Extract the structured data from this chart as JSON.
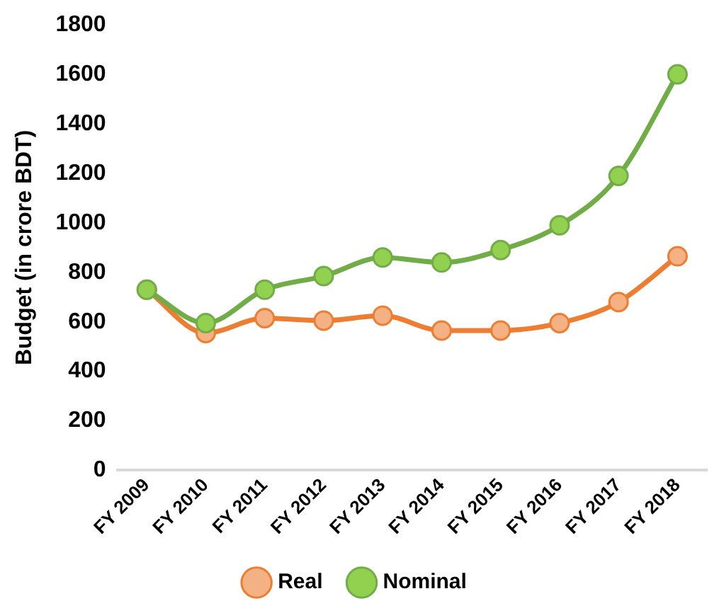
{
  "chart_data": {
    "type": "line",
    "ylabel": "Budget (in crore BDT)",
    "categories": [
      "FY 2009",
      "FY 2010",
      "FY 2011",
      "FY 2012",
      "FY 2013",
      "FY 2014",
      "FY 2015",
      "FY 2016",
      "FY 2017",
      "FY 2018"
    ],
    "series": [
      {
        "name": "Real",
        "color": "#ed7d31",
        "values": [
          730,
          555,
          615,
          605,
          625,
          565,
          565,
          595,
          680,
          865
        ]
      },
      {
        "name": "Nominal",
        "color": "#70ad47",
        "values": [
          730,
          595,
          730,
          785,
          860,
          840,
          890,
          990,
          1190,
          1600
        ]
      }
    ],
    "ylim": [
      0,
      1800
    ],
    "yticks": [
      0,
      200,
      400,
      600,
      800,
      1000,
      1200,
      1400,
      1600,
      1800
    ],
    "grid": false,
    "legend": "bottom",
    "marker": "circle",
    "line_style": "solid"
  }
}
